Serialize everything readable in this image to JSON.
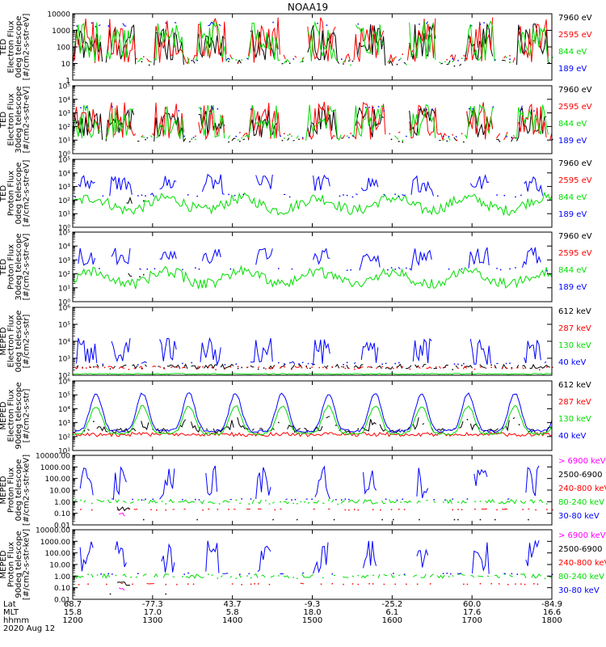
{
  "chart_data": {
    "type": "line",
    "title": "NOAA19",
    "date": "2020 Aug 12",
    "x_axis": {
      "rows": [
        {
          "name": "Lat",
          "values": [
            "68.7",
            "-77.3",
            "43.7",
            "-9.3",
            "-25.2",
            "60.0",
            "-84.9"
          ]
        },
        {
          "name": "MLT",
          "values": [
            "15.8",
            "17.0",
            "5.8",
            "18.0",
            "6.1",
            "17.6",
            "16.6"
          ]
        },
        {
          "name": "hhmm",
          "values": [
            "1200",
            "1300",
            "1400",
            "1500",
            "1600",
            "1700",
            "1800"
          ]
        }
      ],
      "range_hours": [
        12,
        18
      ]
    },
    "panels": [
      {
        "ylabel": [
          "TED",
          "Electron Flux",
          "0deg telescope",
          "[#/cm2-s-str-eV]"
        ],
        "yscale": "log",
        "ylim": [
          1,
          10000
        ],
        "ticks": [
          {
            "v": 1,
            "label": "1"
          },
          {
            "v": 10,
            "label": "10"
          },
          {
            "v": 100,
            "label": "100"
          },
          {
            "v": 1000,
            "label": "1000"
          },
          {
            "v": 10000,
            "label": "10000"
          }
        ],
        "profile": "ted_e0",
        "series": [
          {
            "name": "7960 eV",
            "color": "#000000"
          },
          {
            "name": "2595 eV",
            "color": "#ff0000"
          },
          {
            "name": "844 eV",
            "color": "#00dd00"
          },
          {
            "name": "189 eV",
            "color": "#0000ff"
          }
        ]
      },
      {
        "ylabel": [
          "TED",
          "Electron Flux",
          "30deg telescope",
          "[#/cm2-s-str-eV]"
        ],
        "yscale": "log",
        "ylim": [
          1,
          100000
        ],
        "ticks": [
          {
            "v": 1,
            "label": "10⁰"
          },
          {
            "v": 10,
            "label": "10¹"
          },
          {
            "v": 100,
            "label": "10²"
          },
          {
            "v": 1000,
            "label": "10³"
          },
          {
            "v": 10000,
            "label": "10⁴"
          },
          {
            "v": 100000,
            "label": "10⁵"
          }
        ],
        "profile": "ted_e30",
        "series": [
          {
            "name": "7960 eV",
            "color": "#000000"
          },
          {
            "name": "2595 eV",
            "color": "#ff0000"
          },
          {
            "name": "844 eV",
            "color": "#00dd00"
          },
          {
            "name": "189 eV",
            "color": "#0000ff"
          }
        ]
      },
      {
        "ylabel": [
          "TED",
          "Proton Flux",
          "0deg telescope",
          "[#/cm2-s-str-eV]"
        ],
        "yscale": "log",
        "ylim": [
          1,
          100000
        ],
        "ticks": [
          {
            "v": 1,
            "label": "10⁰"
          },
          {
            "v": 10,
            "label": "10¹"
          },
          {
            "v": 100,
            "label": "10²"
          },
          {
            "v": 1000,
            "label": "10³"
          },
          {
            "v": 10000,
            "label": "10⁴"
          },
          {
            "v": 100000,
            "label": "10⁵"
          }
        ],
        "profile": "ted_p0",
        "series": [
          {
            "name": "7960 eV",
            "color": "#000000"
          },
          {
            "name": "2595 eV",
            "color": "#ff0000"
          },
          {
            "name": "844 eV",
            "color": "#00dd00"
          },
          {
            "name": "189 eV",
            "color": "#0000ff"
          }
        ]
      },
      {
        "ylabel": [
          "TED",
          "Proton Flux",
          "30deg telescope",
          "[#/cm2-s-str-eV]"
        ],
        "yscale": "log",
        "ylim": [
          1,
          100000
        ],
        "ticks": [
          {
            "v": 1,
            "label": "10⁰"
          },
          {
            "v": 10,
            "label": "10¹"
          },
          {
            "v": 100,
            "label": "10²"
          },
          {
            "v": 1000,
            "label": "10³"
          },
          {
            "v": 10000,
            "label": "10⁴"
          },
          {
            "v": 100000,
            "label": "10⁵"
          }
        ],
        "profile": "ted_p30",
        "series": [
          {
            "name": "7960 eV",
            "color": "#000000"
          },
          {
            "name": "2595 eV",
            "color": "#ff0000"
          },
          {
            "name": "844 eV",
            "color": "#00dd00"
          },
          {
            "name": "189 eV",
            "color": "#0000ff"
          }
        ]
      },
      {
        "ylabel": [
          "MEPED",
          "Electron Flux",
          "0deg telescope",
          "[#/cm2-s-str]"
        ],
        "yscale": "log",
        "ylim": [
          100,
          1000000
        ],
        "ticks": [
          {
            "v": 100,
            "label": "10²"
          },
          {
            "v": 1000,
            "label": "10³"
          },
          {
            "v": 10000,
            "label": "10⁴"
          },
          {
            "v": 100000,
            "label": "10⁵"
          },
          {
            "v": 1000000,
            "label": "10⁶"
          }
        ],
        "profile": "mep_e0",
        "series": [
          {
            "name": "612 keV",
            "color": "#000000"
          },
          {
            "name": "287 keV",
            "color": "#ff0000"
          },
          {
            "name": "130 keV",
            "color": "#00dd00"
          },
          {
            "name": "40 keV",
            "color": "#0000ff"
          }
        ]
      },
      {
        "ylabel": [
          "MEPED",
          "Electron Flux",
          "90deg telescope",
          "[#/cm2-s-str]"
        ],
        "yscale": "log",
        "ylim": [
          10,
          1000000
        ],
        "ticks": [
          {
            "v": 10,
            "label": "10¹"
          },
          {
            "v": 100,
            "label": "10²"
          },
          {
            "v": 1000,
            "label": "10³"
          },
          {
            "v": 10000,
            "label": "10⁴"
          },
          {
            "v": 100000,
            "label": "10⁵"
          },
          {
            "v": 1000000,
            "label": "10⁶"
          }
        ],
        "profile": "mep_e90",
        "series": [
          {
            "name": "612 keV",
            "color": "#000000"
          },
          {
            "name": "287 keV",
            "color": "#ff0000"
          },
          {
            "name": "130 keV",
            "color": "#00dd00"
          },
          {
            "name": "40 keV",
            "color": "#0000ff"
          }
        ]
      },
      {
        "ylabel": [
          "MEPED",
          "Proton Flux",
          "0deg telescope",
          "[#/cm2-s-str-keV]"
        ],
        "yscale": "log",
        "ylim": [
          0.01,
          10000
        ],
        "ticks": [
          {
            "v": 0.01,
            "label": "0.01"
          },
          {
            "v": 0.1,
            "label": "0.10"
          },
          {
            "v": 1,
            "label": "1.00"
          },
          {
            "v": 10,
            "label": "10.00"
          },
          {
            "v": 100,
            "label": "100.00"
          },
          {
            "v": 1000,
            "label": "1000.00"
          },
          {
            "v": 10000,
            "label": "10000.00"
          }
        ],
        "profile": "mep_p0",
        "series": [
          {
            "name": "> 6900 keV",
            "color": "#ff00ff"
          },
          {
            "name": "2500-6900",
            "color": "#000000"
          },
          {
            "name": "240-800 keV",
            "color": "#ff0000"
          },
          {
            "name": "80-240 keV",
            "color": "#00dd00"
          },
          {
            "name": "30-80 keV",
            "color": "#0000ff"
          }
        ]
      },
      {
        "ylabel": [
          "MEPED",
          "Proton Flux",
          "90deg telescope",
          "[#/cm2-s-str-keV]"
        ],
        "yscale": "log",
        "ylim": [
          0.01,
          10000
        ],
        "ticks": [
          {
            "v": 0.01,
            "label": "0.01"
          },
          {
            "v": 0.1,
            "label": "0.10"
          },
          {
            "v": 1,
            "label": "1.00"
          },
          {
            "v": 10,
            "label": "10.00"
          },
          {
            "v": 100,
            "label": "100.00"
          },
          {
            "v": 1000,
            "label": "1000.00"
          },
          {
            "v": 10000,
            "label": "10000.00"
          }
        ],
        "profile": "mep_p90",
        "series": [
          {
            "name": "> 6900 keV",
            "color": "#ff00ff"
          },
          {
            "name": "2500-6900",
            "color": "#000000"
          },
          {
            "name": "240-800 keV",
            "color": "#ff0000"
          },
          {
            "name": "80-240 keV",
            "color": "#00dd00"
          },
          {
            "name": "30-80 keV",
            "color": "#0000ff"
          }
        ]
      }
    ]
  }
}
